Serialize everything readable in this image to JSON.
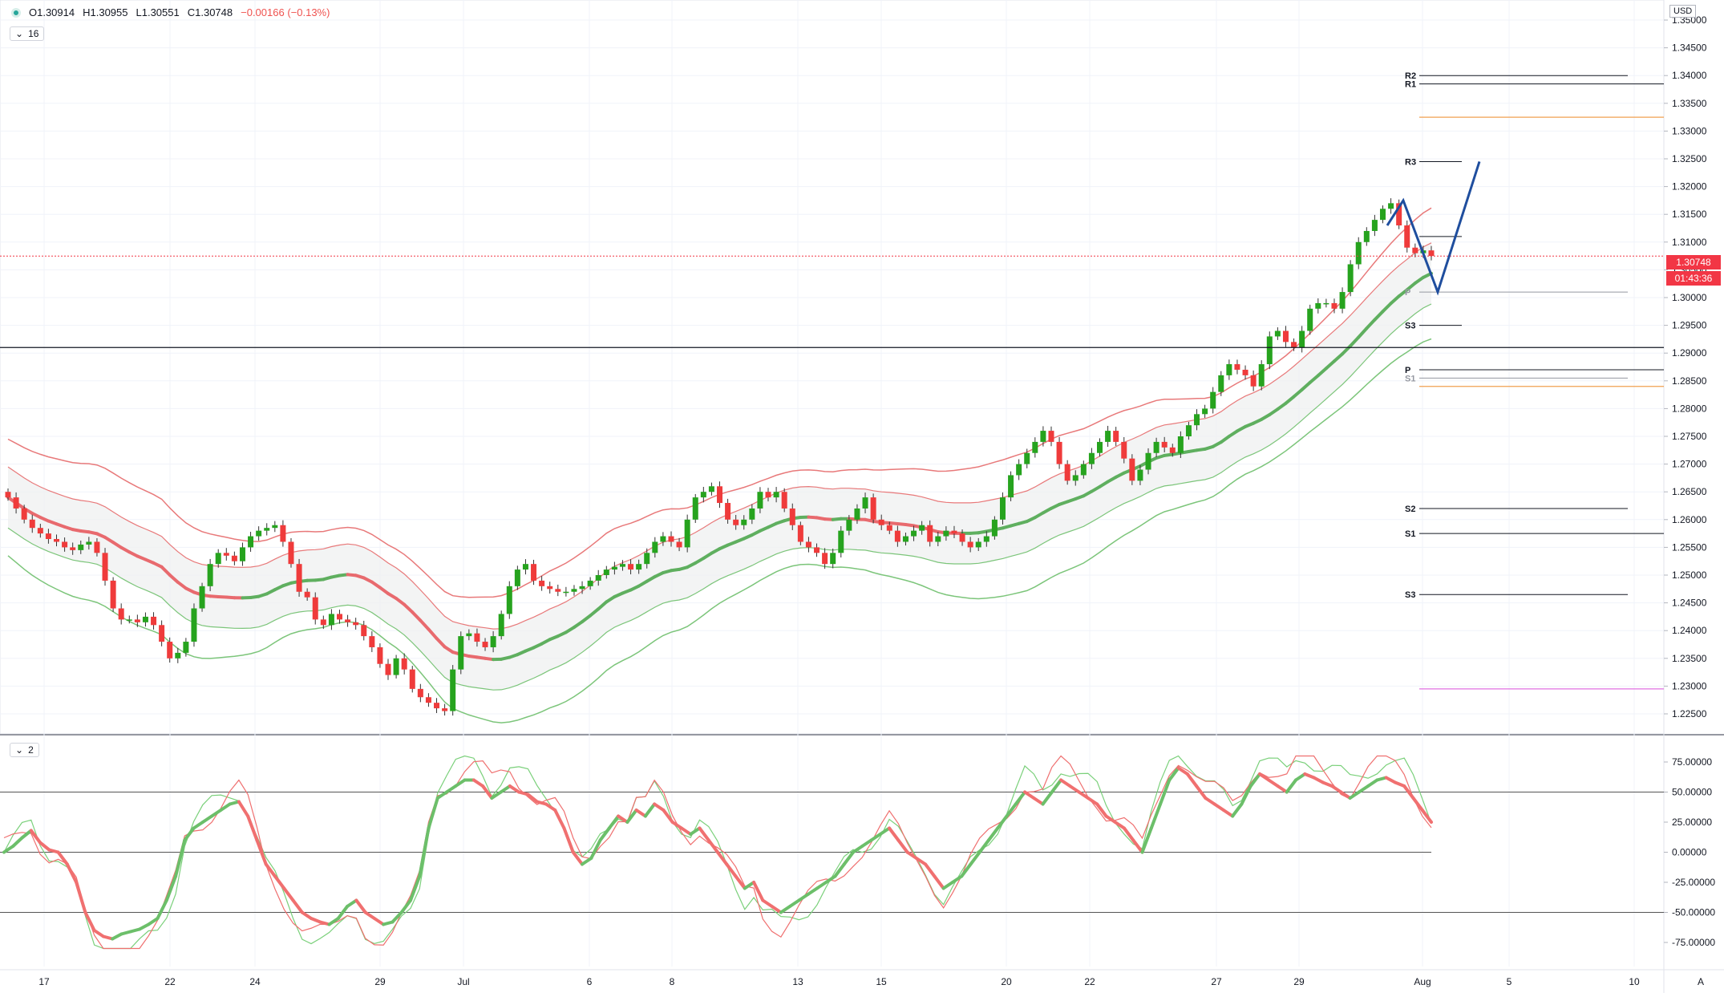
{
  "header": {
    "ohlc": {
      "o": "O1.30914",
      "h": "H1.30955",
      "l": "L1.30551",
      "c": "C1.30748",
      "change": "−0.00166 (−0.13%)"
    },
    "main_indicator_badge": "16",
    "sub_indicator_badge": "2",
    "currency": "USD",
    "last_price": "1.30748",
    "countdown": "01:43:36"
  },
  "colors": {
    "up": "#26a31e",
    "down": "#ef3b3b",
    "band_up": "#e8797a",
    "band_dn": "#7cc57a",
    "mid_red": "#e86a6e",
    "mid_green": "#5faf5f",
    "oversold": "#7ad07a",
    "overbought": "#ef6f6f"
  },
  "chart_data": [
    {
      "type": "candlestick",
      "title": "",
      "ylim": [
        1.225,
        1.355
      ],
      "y_ticks": [
        "1.35000",
        "1.34500",
        "1.34000",
        "1.33500",
        "1.33000",
        "1.32500",
        "1.32000",
        "1.31500",
        "1.31000",
        "1.30500",
        "1.30000",
        "1.29500",
        "1.29000",
        "1.28500",
        "1.28000",
        "1.27500",
        "1.27000",
        "1.26500",
        "1.26000",
        "1.25500",
        "1.25000",
        "1.24500",
        "1.24000",
        "1.23500",
        "1.23000",
        "1.22500"
      ],
      "x_labels": [
        "17",
        "22",
        "24",
        "29",
        "Jul",
        "6",
        "8",
        "13",
        "15",
        "20",
        "22",
        "27",
        "29",
        "Aug",
        "5",
        "10",
        "A"
      ],
      "closes": [
        1.264,
        1.262,
        1.26,
        1.2585,
        1.2575,
        1.2565,
        1.256,
        1.255,
        1.2545,
        1.2555,
        1.256,
        1.254,
        1.249,
        1.244,
        1.242,
        1.242,
        1.2415,
        1.2425,
        1.241,
        1.238,
        1.235,
        1.236,
        1.238,
        1.244,
        1.248,
        1.252,
        1.254,
        1.2535,
        1.2525,
        1.255,
        1.257,
        1.258,
        1.2585,
        1.259,
        1.256,
        1.252,
        1.247,
        1.246,
        1.242,
        1.241,
        1.243,
        1.242,
        1.2415,
        1.241,
        1.239,
        1.237,
        1.234,
        1.232,
        1.235,
        1.233,
        1.2295,
        1.228,
        1.227,
        1.226,
        1.2255,
        1.233,
        1.239,
        1.2395,
        1.238,
        1.237,
        1.239,
        1.243,
        1.248,
        1.251,
        1.252,
        1.249,
        1.248,
        1.2475,
        1.247,
        1.247,
        1.2475,
        1.248,
        1.249,
        1.25,
        1.251,
        1.2515,
        1.252,
        1.251,
        1.252,
        1.254,
        1.256,
        1.257,
        1.256,
        1.255,
        1.26,
        1.264,
        1.265,
        1.266,
        1.263,
        1.26,
        1.259,
        1.26,
        1.262,
        1.265,
        1.264,
        1.265,
        1.262,
        1.259,
        1.256,
        1.255,
        1.254,
        1.252,
        1.254,
        1.258,
        1.26,
        1.262,
        1.264,
        1.26,
        1.259,
        1.258,
        1.256,
        1.257,
        1.258,
        1.259,
        1.256,
        1.257,
        1.258,
        1.2575,
        1.256,
        1.255,
        1.256,
        1.257,
        1.26,
        1.264,
        1.268,
        1.27,
        1.272,
        1.274,
        1.276,
        1.274,
        1.27,
        1.267,
        1.268,
        1.27,
        1.272,
        1.274,
        1.276,
        1.274,
        1.271,
        1.267,
        1.269,
        1.272,
        1.274,
        1.273,
        1.272,
        1.275,
        1.277,
        1.279,
        1.28,
        1.283,
        1.286,
        1.288,
        1.287,
        1.286,
        1.284,
        1.288,
        1.293,
        1.294,
        1.292,
        1.291,
        1.294,
        1.298,
        1.299,
        1.299,
        1.298,
        1.301,
        1.306,
        1.31,
        1.312,
        1.314,
        1.316,
        1.317,
        1.313,
        1.309,
        1.308,
        1.3085,
        1.3075
      ],
      "legend": []
    },
    {
      "type": "line",
      "title": "",
      "ylim": [
        -90,
        90
      ],
      "y_ticks": [
        "75.00000",
        "50.00000",
        "25.00000",
        "0.00000",
        "-25.00000",
        "-50.00000",
        "-75.00000"
      ],
      "levels": [
        50,
        0,
        -50
      ],
      "series_main": [
        0,
        5,
        12,
        18,
        8,
        2,
        0,
        -10,
        -25,
        -50,
        -65,
        -70,
        -72,
        -68,
        -66,
        -64,
        -60,
        -55,
        -40,
        -20,
        10,
        20,
        25,
        30,
        35,
        40,
        42,
        30,
        10,
        -10,
        -20,
        -30,
        -40,
        -50,
        -55,
        -58,
        -60,
        -55,
        -45,
        -40,
        -50,
        -55,
        -60,
        -58,
        -50,
        -40,
        -20,
        20,
        45,
        50,
        55,
        60,
        60,
        55,
        45,
        50,
        55,
        50,
        48,
        42,
        40,
        35,
        20,
        0,
        -10,
        -5,
        10,
        20,
        30,
        25,
        35,
        30,
        40,
        35,
        25,
        20,
        15,
        20,
        10,
        0,
        -10,
        -20,
        -30,
        -25,
        -40,
        -45,
        -50,
        -45,
        -40,
        -35,
        -30,
        -25,
        -20,
        -10,
        0,
        5,
        10,
        15,
        20,
        10,
        0,
        -5,
        -10,
        -20,
        -30,
        -25,
        -20,
        -10,
        0,
        10,
        20,
        30,
        40,
        50,
        45,
        40,
        50,
        60,
        55,
        50,
        45,
        40,
        30,
        25,
        20,
        10,
        0,
        20,
        40,
        60,
        70,
        65,
        55,
        45,
        40,
        35,
        30,
        40,
        55,
        65,
        60,
        55,
        50,
        60,
        65,
        62,
        58,
        55,
        50,
        45,
        50,
        55,
        60,
        62,
        58,
        55,
        45,
        35,
        25
      ]
    }
  ],
  "levels_labels": [
    "R2",
    "R1",
    "R3",
    "P",
    "P",
    "S3",
    "S1",
    "S2",
    "S1",
    "S3"
  ]
}
